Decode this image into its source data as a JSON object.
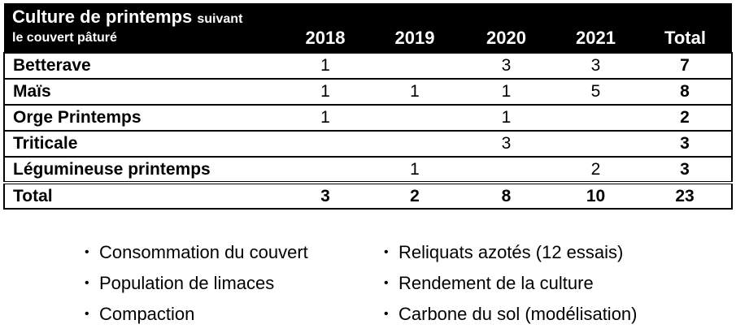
{
  "table": {
    "header": {
      "title_main": "Culture de printemps",
      "title_sub": "suivant",
      "title_line2": "le couvert pâturé",
      "years": [
        "2018",
        "2019",
        "2020",
        "2021"
      ],
      "total_label": "Total"
    },
    "rows": [
      {
        "label": "Betterave",
        "cells": [
          "1",
          "",
          "3",
          "3"
        ],
        "total": "7"
      },
      {
        "label": "Maïs",
        "cells": [
          "1",
          "1",
          "1",
          "5"
        ],
        "total": "8"
      },
      {
        "label": "Orge Printemps",
        "cells": [
          "1",
          "",
          "1",
          ""
        ],
        "total": "2"
      },
      {
        "label": "Triticale",
        "cells": [
          "",
          "",
          "3",
          ""
        ],
        "total": "3"
      },
      {
        "label": "Légumineuse printemps",
        "cells": [
          "",
          "1",
          "",
          "2"
        ],
        "total": "3"
      }
    ],
    "total_row": {
      "label": "Total",
      "cells": [
        "3",
        "2",
        "8",
        "10"
      ],
      "total": "23"
    }
  },
  "bullets": {
    "symbol": "•",
    "left": [
      "Consommation du couvert",
      "Population de limaces",
      "Compaction"
    ],
    "right": [
      "Reliquats azotés (12 essais)",
      "Rendement de la culture",
      "Carbone du sol (modélisation)"
    ]
  }
}
